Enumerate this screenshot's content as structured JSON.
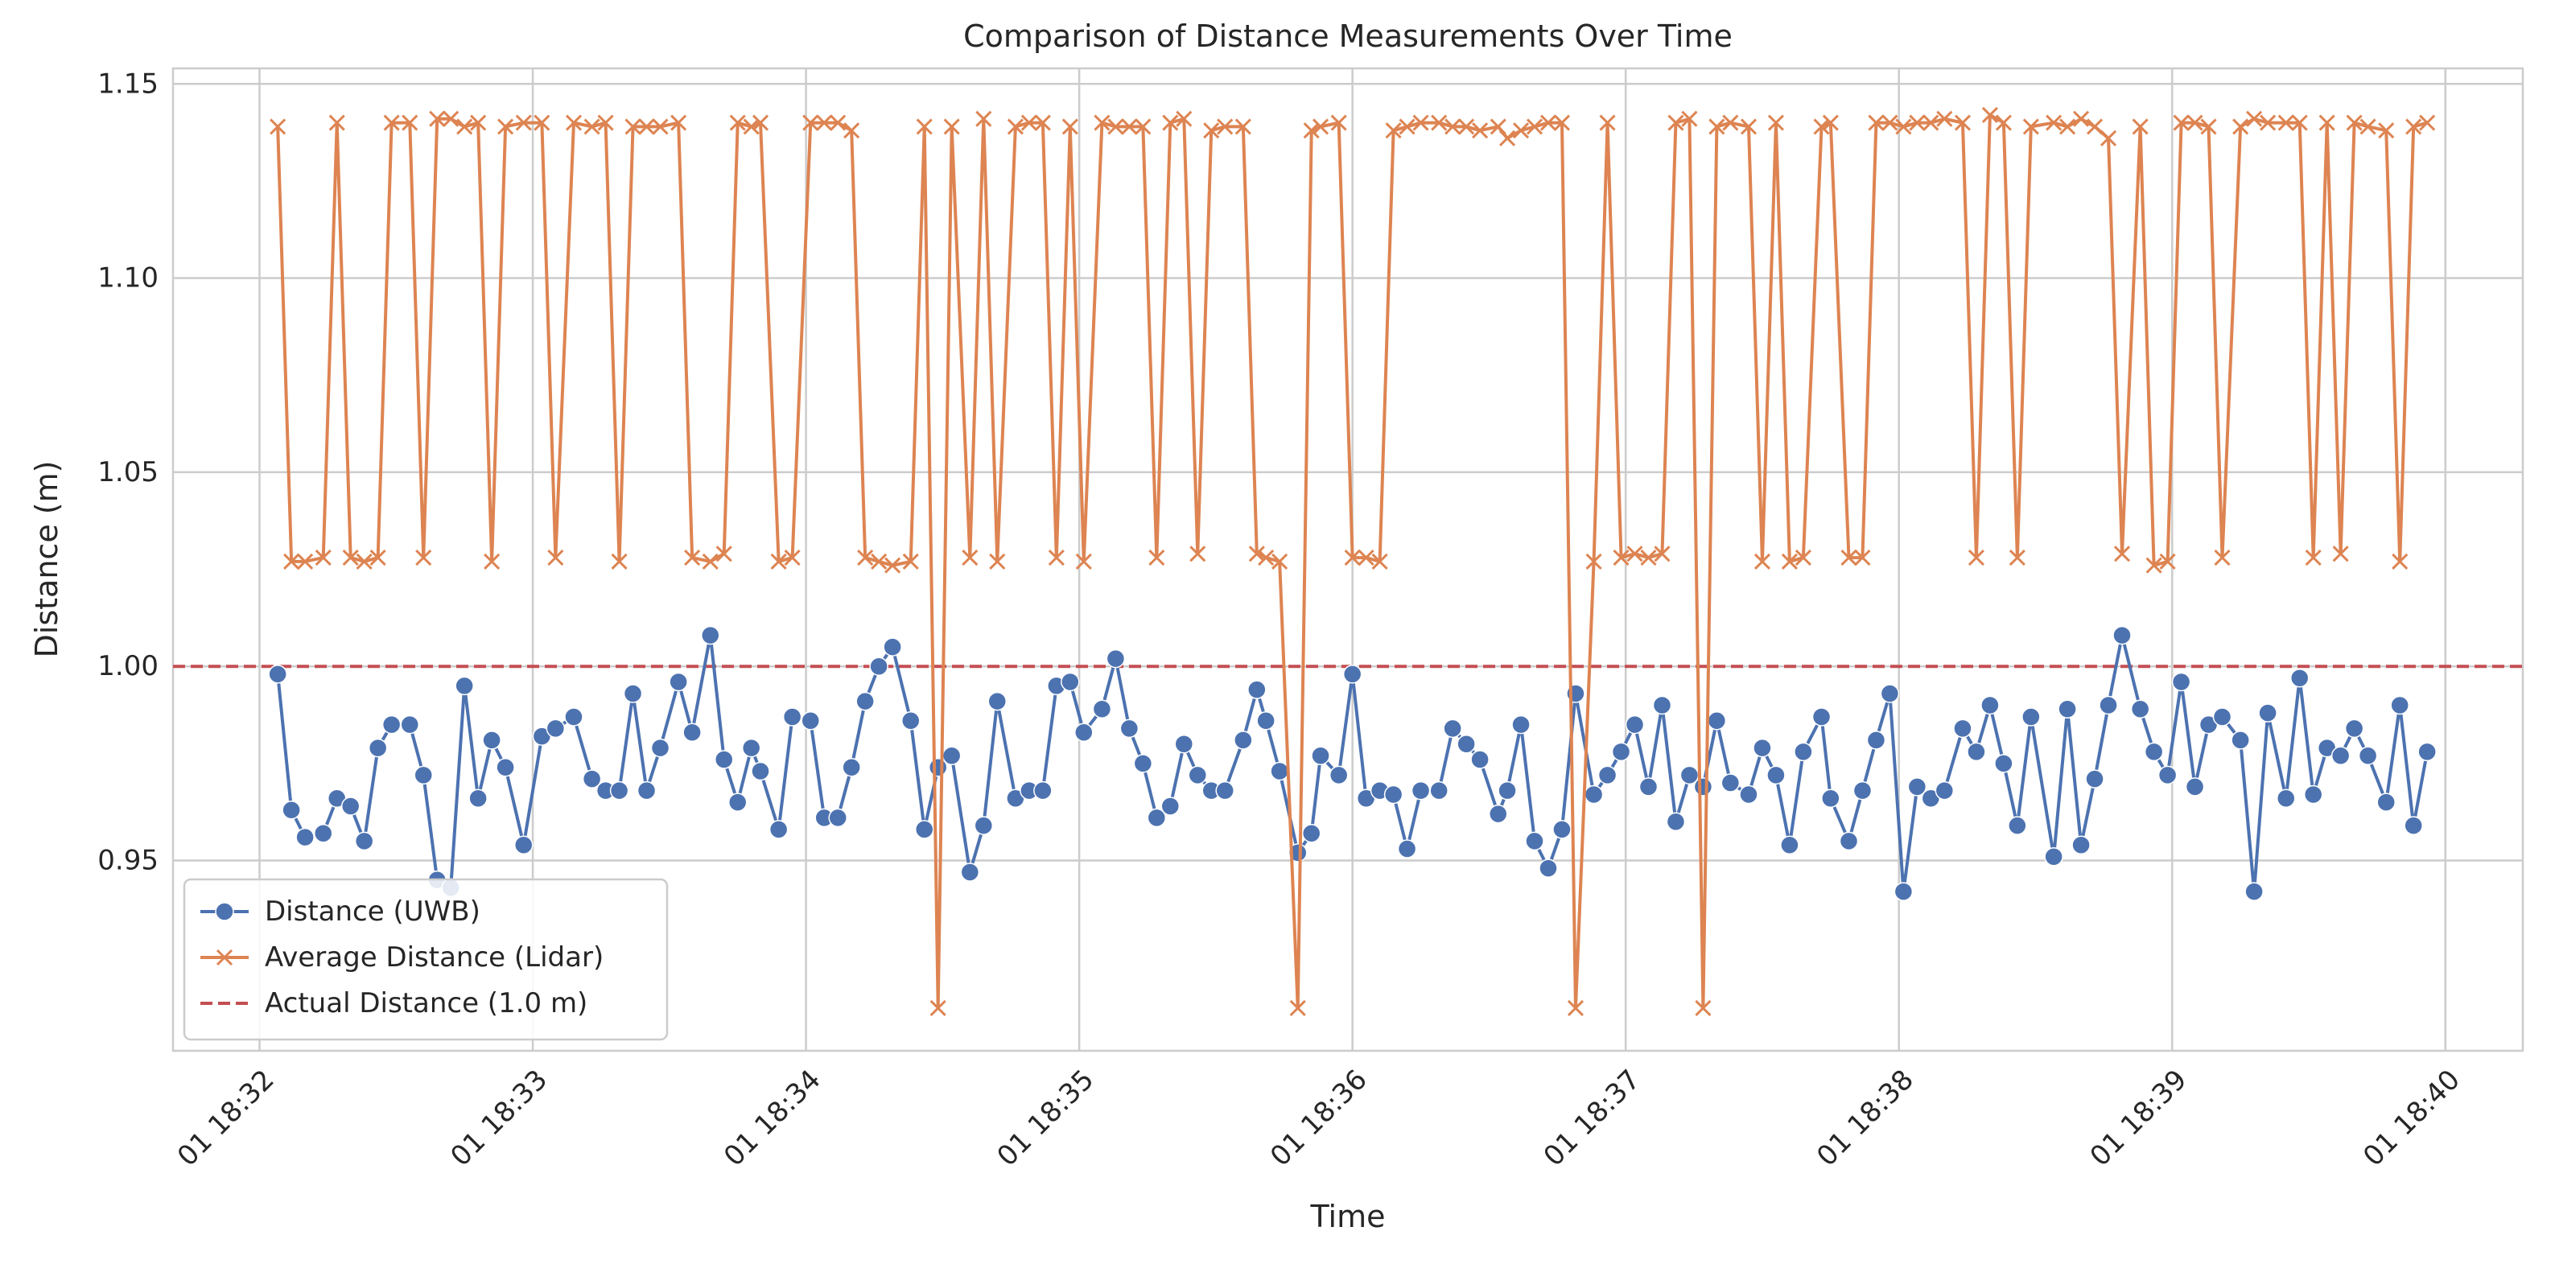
{
  "chart_data": {
    "type": "line",
    "title": "Comparison of Distance Measurements Over Time",
    "xlabel": "Time",
    "ylabel": "Distance (m)",
    "x": [
      "18:32:04",
      "18:32:07",
      "18:32:10",
      "18:32:14",
      "18:32:17",
      "18:32:20",
      "18:32:23",
      "18:32:26",
      "18:32:29",
      "18:32:33",
      "18:32:36",
      "18:32:39",
      "18:32:42",
      "18:32:45",
      "18:32:48",
      "18:32:51",
      "18:32:54",
      "18:32:58",
      "18:33:02",
      "18:33:05",
      "18:33:09",
      "18:33:13",
      "18:33:16",
      "18:33:19",
      "18:33:22",
      "18:33:25",
      "18:33:28",
      "18:33:32",
      "18:33:35",
      "18:33:39",
      "18:33:42",
      "18:33:45",
      "18:33:48",
      "18:33:50",
      "18:33:54",
      "18:33:57",
      "18:34:01",
      "18:34:04",
      "18:34:07",
      "18:34:10",
      "18:34:13",
      "18:34:16",
      "18:34:19",
      "18:34:23",
      "18:34:26",
      "18:34:29",
      "18:34:32",
      "18:34:36",
      "18:34:39",
      "18:34:42",
      "18:34:46",
      "18:34:49",
      "18:34:52",
      "18:34:55",
      "18:34:58",
      "18:35:01",
      "18:35:05",
      "18:35:08",
      "18:35:11",
      "18:35:14",
      "18:35:17",
      "18:35:20",
      "18:35:23",
      "18:35:26",
      "18:35:29",
      "18:35:32",
      "18:35:36",
      "18:35:39",
      "18:35:41",
      "18:35:44",
      "18:35:48",
      "18:35:51",
      "18:35:53",
      "18:35:57",
      "18:36:00",
      "18:36:03",
      "18:36:06",
      "18:36:09",
      "18:36:12",
      "18:36:15",
      "18:36:19",
      "18:36:22",
      "18:36:25",
      "18:36:28",
      "18:36:32",
      "18:36:34",
      "18:36:37",
      "18:36:40",
      "18:36:43",
      "18:36:46",
      "18:36:49",
      "18:36:53",
      "18:36:56",
      "18:36:59",
      "18:37:02",
      "18:37:05",
      "18:37:08",
      "18:37:11",
      "18:37:14",
      "18:37:17",
      "18:37:20",
      "18:37:23",
      "18:37:27",
      "18:37:30",
      "18:37:33",
      "18:37:36",
      "18:37:39",
      "18:37:43",
      "18:37:45",
      "18:37:49",
      "18:37:52",
      "18:37:55",
      "18:37:58",
      "18:38:01",
      "18:38:04",
      "18:38:07",
      "18:38:10",
      "18:38:14",
      "18:38:17",
      "18:38:20",
      "18:38:23",
      "18:38:26",
      "18:38:29",
      "18:38:34",
      "18:38:37",
      "18:38:40",
      "18:38:43",
      "18:38:46",
      "18:38:49",
      "18:38:53",
      "18:38:56",
      "18:38:59",
      "18:39:02",
      "18:39:05",
      "18:39:08",
      "18:39:11",
      "18:39:15",
      "18:39:18",
      "18:39:21",
      "18:39:25",
      "18:39:28",
      "18:39:31",
      "18:39:34",
      "18:39:37",
      "18:39:40",
      "18:39:43",
      "18:39:47",
      "18:39:50",
      "18:39:53",
      "18:39:56"
    ],
    "series": [
      {
        "name": "Distance (UWB)",
        "color": "#4c72b0",
        "marker": "o",
        "values": [
          0.998,
          0.963,
          0.956,
          0.957,
          0.966,
          0.964,
          0.955,
          0.979,
          0.985,
          0.985,
          0.972,
          0.945,
          0.943,
          0.995,
          0.966,
          0.981,
          0.974,
          0.954,
          0.982,
          0.984,
          0.987,
          0.971,
          0.968,
          0.968,
          0.993,
          0.968,
          0.979,
          0.996,
          0.983,
          1.008,
          0.976,
          0.965,
          0.979,
          0.973,
          0.958,
          0.987,
          0.986,
          0.961,
          0.961,
          0.974,
          0.991,
          1.0,
          1.005,
          0.986,
          0.958,
          0.974,
          0.977,
          0.947,
          0.959,
          0.991,
          0.966,
          0.968,
          0.968,
          0.995,
          0.996,
          0.983,
          0.989,
          1.002,
          0.984,
          0.975,
          0.961,
          0.964,
          0.98,
          0.972,
          0.968,
          0.968,
          0.981,
          0.994,
          0.986,
          0.973,
          0.952,
          0.957,
          0.977,
          0.972,
          0.998,
          0.966,
          0.968,
          0.967,
          0.953,
          0.968,
          0.968,
          0.984,
          0.98,
          0.976,
          0.962,
          0.968,
          0.985,
          0.955,
          0.948,
          0.958,
          0.993,
          0.967,
          0.972,
          0.978,
          0.985,
          0.969,
          0.99,
          0.96,
          0.972,
          0.969,
          0.986,
          0.97,
          0.967,
          0.979,
          0.972,
          0.954,
          0.978,
          0.987,
          0.966,
          0.955,
          0.968,
          0.981,
          0.993,
          0.942,
          0.969,
          0.966,
          0.968,
          0.984,
          0.978,
          0.99,
          0.975,
          0.959,
          0.987,
          0.951,
          0.989,
          0.954,
          0.971,
          0.99,
          1.008,
          0.989,
          0.978,
          0.972,
          0.996,
          0.969,
          0.985,
          0.987,
          0.981,
          0.942,
          0.988,
          0.966,
          0.997,
          0.967,
          0.979,
          0.977,
          0.984,
          0.977,
          0.965,
          0.99,
          0.959,
          0.978
        ]
      },
      {
        "name": "Average Distance (Lidar)",
        "color": "#dd8452",
        "marker": "x",
        "values": [
          1.139,
          1.027,
          1.027,
          1.028,
          1.14,
          1.028,
          1.027,
          1.028,
          1.14,
          1.14,
          1.028,
          1.141,
          1.141,
          1.139,
          1.14,
          1.027,
          1.139,
          1.14,
          1.14,
          1.028,
          1.14,
          1.139,
          1.14,
          1.027,
          1.139,
          1.139,
          1.139,
          1.14,
          1.028,
          1.027,
          1.029,
          1.14,
          1.139,
          1.14,
          1.027,
          1.028,
          1.14,
          1.14,
          1.14,
          1.138,
          1.028,
          1.027,
          1.026,
          1.027,
          1.139,
          0.912,
          1.139,
          1.028,
          1.141,
          1.027,
          1.139,
          1.14,
          1.14,
          1.028,
          1.139,
          1.027,
          1.14,
          1.139,
          1.139,
          1.139,
          1.028,
          1.14,
          1.141,
          1.029,
          1.138,
          1.139,
          1.139,
          1.029,
          1.028,
          1.027,
          0.912,
          1.138,
          1.139,
          1.14,
          1.028,
          1.028,
          1.027,
          1.138,
          1.139,
          1.14,
          1.14,
          1.139,
          1.139,
          1.138,
          1.139,
          1.136,
          1.138,
          1.139,
          1.14,
          1.14,
          0.912,
          1.027,
          1.14,
          1.028,
          1.029,
          1.028,
          1.029,
          1.14,
          1.141,
          0.912,
          1.139,
          1.14,
          1.139,
          1.027,
          1.14,
          1.027,
          1.028,
          1.139,
          1.14,
          1.028,
          1.028,
          1.14,
          1.14,
          1.139,
          1.14,
          1.14,
          1.141,
          1.14,
          1.028,
          1.142,
          1.14,
          1.028,
          1.139,
          1.14,
          1.139,
          1.141,
          1.139,
          1.136,
          1.029,
          1.139,
          1.026,
          1.027,
          1.14,
          1.14,
          1.139,
          1.028,
          1.139,
          1.141,
          1.14,
          1.14,
          1.14,
          1.028,
          1.14,
          1.029,
          1.14,
          1.139,
          1.138,
          1.027,
          1.139,
          1.14
        ]
      }
    ],
    "reference_lines": [
      {
        "name": "Actual Distance (1.0 m)",
        "value": 1.0,
        "color": "#c44e52",
        "style": "dashed"
      }
    ],
    "xlim": [
      "18:31:41",
      "18:40:17"
    ],
    "xticks": [
      {
        "value": "18:32:00",
        "label": "01 18:32"
      },
      {
        "value": "18:33:00",
        "label": "01 18:33"
      },
      {
        "value": "18:34:00",
        "label": "01 18:34"
      },
      {
        "value": "18:35:00",
        "label": "01 18:35"
      },
      {
        "value": "18:36:00",
        "label": "01 18:36"
      },
      {
        "value": "18:37:00",
        "label": "01 18:37"
      },
      {
        "value": "18:38:00",
        "label": "01 18:38"
      },
      {
        "value": "18:39:00",
        "label": "01 18:39"
      },
      {
        "value": "18:40:00",
        "label": "01 18:40"
      }
    ],
    "ylim": [
      0.901,
      1.154
    ],
    "yticks": [
      0.95,
      {
        "value": 1,
        "label": "1.00"
      },
      1.05,
      {
        "value": 1.1,
        "label": "1.10"
      },
      1.15
    ],
    "grid": true,
    "legend": "lower left"
  }
}
